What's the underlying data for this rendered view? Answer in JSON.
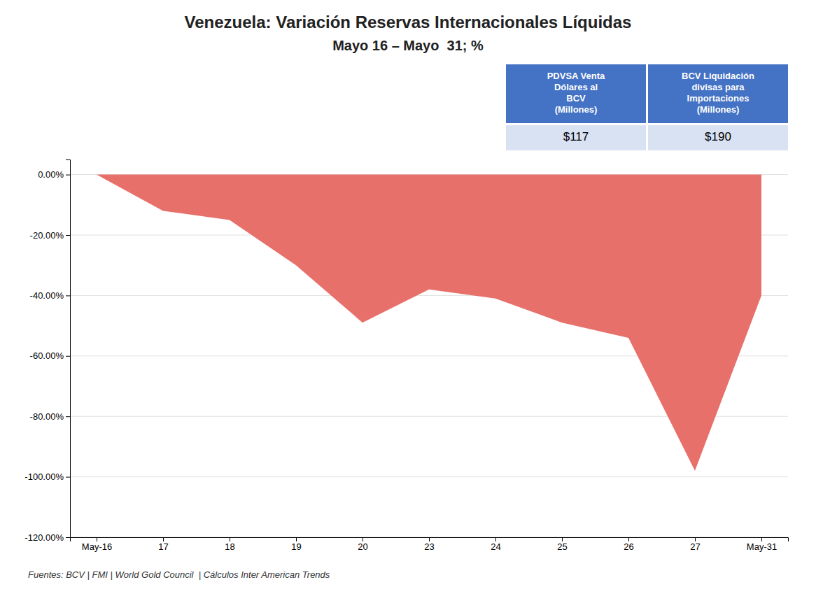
{
  "chart_data": {
    "type": "area",
    "title": "Venezuela: Variación Reservas Internacionales Líquidas",
    "subtitle": "Mayo 16 – Mayo  31; %",
    "categories": [
      "May-16",
      "17",
      "18",
      "19",
      "20",
      "23",
      "24",
      "25",
      "26",
      "27",
      "May-31"
    ],
    "values": [
      0.0,
      -0.12,
      -0.15,
      -0.3,
      -0.49,
      -0.38,
      -0.41,
      -0.49,
      -0.54,
      -0.98,
      -0.4
    ],
    "color": "#E8706A",
    "ylim": [
      -1.2,
      0.05
    ],
    "yticks": [
      {
        "value": 0.0,
        "label": "0.00%"
      },
      {
        "value": -0.2,
        "label": "-20.00%"
      },
      {
        "value": -0.4,
        "label": "-40.00%"
      },
      {
        "value": -0.6,
        "label": "-60.00%"
      },
      {
        "value": -0.8,
        "label": "-80.00%"
      },
      {
        "value": -1.0,
        "label": "-100.00%"
      },
      {
        "value": -1.2,
        "label": "-120.00%"
      }
    ],
    "grid": true,
    "footer": "Fuentes: BCV | FMI | World Gold Council  | Cálculos Inter American Trends",
    "table": {
      "columns": [
        "PDVSA Venta\nDólares al\nBCV\n(Millones)",
        "BCV Liquidación\ndivisas para\nImportaciones\n(Millones)"
      ],
      "cells": [
        "$117",
        "$190"
      ]
    }
  }
}
